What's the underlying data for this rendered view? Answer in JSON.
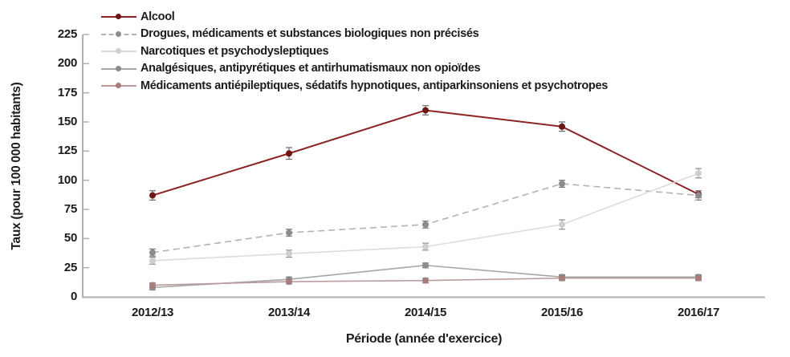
{
  "chart_data": {
    "type": "line",
    "title": "",
    "xlabel": "Période (année d'exercice)",
    "ylabel": "Taux (pour 100 000 habitants)",
    "categories": [
      "2012/13",
      "2013/14",
      "2014/15",
      "2015/16",
      "2016/17"
    ],
    "y_ticks": [
      0,
      25,
      50,
      75,
      100,
      125,
      150,
      175,
      200,
      225
    ],
    "ylim": [
      0,
      225
    ],
    "grid": false,
    "legend_position": "top-left-inside",
    "error_bars": true,
    "axis_color": "#b0b0b0",
    "text_color": "#1b1b1b",
    "series": [
      {
        "name": "Alcool",
        "values": [
          87,
          123,
          160,
          146,
          88
        ],
        "errors": [
          4,
          5,
          4,
          4,
          3
        ],
        "dash": "solid",
        "color": "#8b2323",
        "marker_color": "#701515",
        "error_color": "#6b6b6b"
      },
      {
        "name": "Drogues, médicaments et substances biologiques non précisés",
        "values": [
          38,
          55,
          62,
          97,
          87
        ],
        "errors": [
          3,
          3,
          3,
          3,
          4
        ],
        "dash": "dashed",
        "color": "#b3b3b3",
        "marker_color": "#8c8c8c",
        "error_color": "#7d7d7d"
      },
      {
        "name": "Narcotiques et psychodysleptiques",
        "values": [
          31,
          37,
          43,
          62,
          106
        ],
        "errors": [
          3,
          3,
          3,
          4,
          4
        ],
        "dash": "solid",
        "color": "#dcdcdc",
        "marker_color": "#cfcfcf",
        "error_color": "#8f8f8f"
      },
      {
        "name": "Analgésiques, antipyrétiques et antirhumatismaux non opioïdes",
        "values": [
          8,
          15,
          27,
          17,
          17
        ],
        "errors": [
          2,
          2,
          2,
          2,
          2
        ],
        "dash": "solid",
        "color": "#a6a6a6",
        "marker_color": "#8c8c8c",
        "error_color": "#7d7d7d"
      },
      {
        "name": "Médicaments antiépileptiques, sédatifs hypnotiques, antiparkinsoniens et psychotropes",
        "values": [
          10,
          13,
          14,
          16,
          16
        ],
        "errors": [
          2,
          2,
          2,
          2,
          2
        ],
        "dash": "solid",
        "color": "#bc9b9b",
        "marker_color": "#a97c7c",
        "error_color": "#7d7d7d"
      }
    ]
  }
}
